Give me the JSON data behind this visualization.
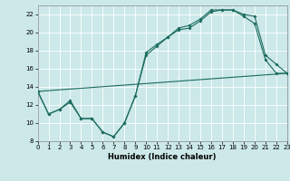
{
  "xlabel": "Humidex (Indice chaleur)",
  "xlim": [
    0,
    23
  ],
  "ylim": [
    8,
    23
  ],
  "yticks": [
    8,
    10,
    12,
    14,
    16,
    18,
    20,
    22
  ],
  "xticks": [
    0,
    1,
    2,
    3,
    4,
    5,
    6,
    7,
    8,
    9,
    10,
    11,
    12,
    13,
    14,
    15,
    16,
    17,
    18,
    19,
    20,
    21,
    22,
    23
  ],
  "bg_color": "#cce8e8",
  "grid_color": "#ffffff",
  "line_color": "#1a6b5e",
  "line1_x": [
    0,
    1,
    2,
    3,
    4,
    5,
    6,
    7,
    8,
    9,
    10,
    11,
    12,
    13,
    14,
    15,
    16,
    17,
    18,
    19,
    20,
    21,
    22,
    23
  ],
  "line1_y": [
    13.5,
    11.0,
    11.5,
    12.5,
    10.5,
    10.5,
    9.0,
    8.5,
    10.0,
    13.0,
    17.5,
    18.5,
    19.5,
    20.3,
    20.5,
    21.3,
    22.3,
    22.5,
    22.5,
    21.8,
    21.0,
    17.0,
    15.5,
    15.5
  ],
  "line2_x": [
    0,
    1,
    2,
    3,
    4,
    5,
    6,
    7,
    8,
    9,
    10,
    11,
    12,
    13,
    14,
    15,
    16,
    17,
    18,
    19,
    20,
    21,
    22,
    23
  ],
  "line2_y": [
    13.5,
    11.0,
    11.5,
    12.3,
    10.5,
    10.5,
    9.0,
    8.5,
    10.0,
    13.0,
    17.8,
    18.7,
    19.5,
    20.5,
    20.8,
    21.5,
    22.5,
    22.5,
    22.5,
    22.0,
    21.8,
    17.5,
    16.5,
    15.5
  ],
  "line3_x": [
    0,
    23
  ],
  "line3_y": [
    13.5,
    15.5
  ],
  "figsize": [
    3.2,
    2.0
  ],
  "dpi": 100
}
